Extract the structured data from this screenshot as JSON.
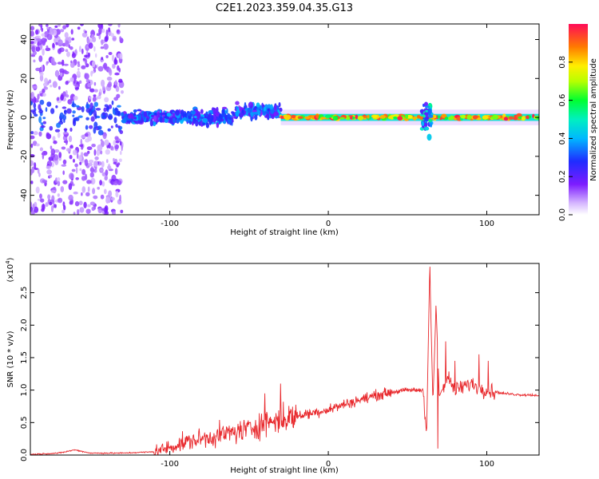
{
  "title": "C2E1.2023.359.04.35.G13",
  "chart_data": [
    {
      "type": "heatmap",
      "xlabel": "Height of straight line (km)",
      "ylabel": "Frequency (Hz)",
      "xlim": [
        -188,
        133
      ],
      "ylim": [
        -50,
        48
      ],
      "xticks": [
        -100,
        0,
        100
      ],
      "yticks": [
        -40,
        -20,
        0,
        20,
        40
      ],
      "colorbar": {
        "label": "Normalized spectral amplitude",
        "range": [
          0,
          1
        ],
        "ticks": [
          0.0,
          0.2,
          0.4,
          0.6,
          0.8
        ]
      },
      "features": [
        {
          "x_start": -188,
          "x_end": -130,
          "freq_spread": 50,
          "amplitude": 0.15
        },
        {
          "x_start": -130,
          "x_end": -30,
          "freq_spread": 6,
          "amplitude": 0.35
        },
        {
          "x_start": -30,
          "x_end": 133,
          "freq_spread": 2,
          "amplitude": 0.9
        },
        {
          "x_center": 62,
          "freq_spread": 12,
          "amplitude": 0.45
        }
      ]
    },
    {
      "type": "line",
      "xlabel": "Height of straight line (km)",
      "ylabel": "SNR (10 * v/v)",
      "yscale_label": "(x10",
      "yscale_exp": "4",
      "yscale_close": ")",
      "xlim": [
        -188,
        133
      ],
      "ylim": [
        0,
        2.95
      ],
      "xticks": [
        -100,
        0,
        100
      ],
      "yticks": [
        0.0,
        0.5,
        1.0,
        1.5,
        2.0,
        2.5
      ],
      "series": [
        {
          "color": "#e8262a",
          "x": [
            -188,
            -170,
            -160,
            -150,
            -130,
            -110,
            -100,
            -90,
            -80,
            -70,
            -60,
            -50,
            -40,
            -30,
            -20,
            -10,
            0,
            10,
            20,
            30,
            40,
            50,
            60,
            62,
            64,
            66,
            68,
            70,
            75,
            80,
            90,
            100,
            110,
            120,
            133
          ],
          "y": [
            0.01,
            0.03,
            0.08,
            0.03,
            0.03,
            0.05,
            0.12,
            0.2,
            0.25,
            0.3,
            0.35,
            0.4,
            0.5,
            0.55,
            0.6,
            0.65,
            0.7,
            0.78,
            0.85,
            0.92,
            0.97,
            1.0,
            1.0,
            0.3,
            2.9,
            0.8,
            2.3,
            0.9,
            1.2,
            1.0,
            1.1,
            1.0,
            0.95,
            0.93,
            0.92
          ],
          "spikes": [
            {
              "x": -30,
              "y": 1.1
            },
            {
              "x": -40,
              "y": 0.95
            },
            {
              "x": 64,
              "y": 2.9
            },
            {
              "x": 68,
              "y": 2.3
            },
            {
              "x": 69,
              "y": 0.1
            },
            {
              "x": 74,
              "y": 1.75
            },
            {
              "x": 80,
              "y": 1.45
            },
            {
              "x": 95,
              "y": 1.55
            },
            {
              "x": 101,
              "y": 1.45
            }
          ]
        }
      ]
    }
  ]
}
